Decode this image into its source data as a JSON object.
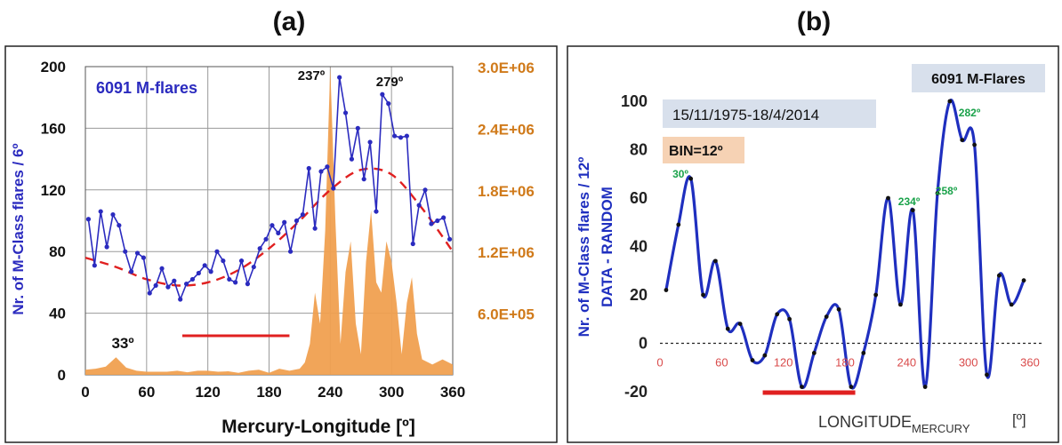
{
  "panel_a_label": "(a)",
  "panel_b_label": "(b)",
  "chart_data": [
    {
      "type": "line",
      "panel": "(a)",
      "annotation_count": "6091 M-flares",
      "annotations": [
        "237º",
        "279º",
        "33º"
      ],
      "xlabel": "Mercury-Longitude  [º]",
      "ylabel": "Nr.  of  M-Class  flares / 6º",
      "xlim": [
        0,
        360
      ],
      "ylim": [
        0,
        200
      ],
      "y2lim": [
        0,
        3000000
      ],
      "x_ticks": [
        "0",
        "60",
        "120",
        "180",
        "240",
        "300",
        "360"
      ],
      "y_ticks": [
        "0",
        "40",
        "80",
        "120",
        "160",
        "200"
      ],
      "y2_ticks": [
        "6.0E+05",
        "1.2E+06",
        "1.8E+06",
        "2.4E+06",
        "3.0E+06"
      ],
      "grid": true,
      "colors": {
        "series": "#2b2bbf",
        "fit": "#e02020",
        "area": "#f0a050",
        "y2axis": "#d07a1a",
        "bar": "#e02020"
      },
      "highlight_range": [
        95,
        200
      ],
      "series": [
        {
          "style": "line-markers",
          "x": [
            3,
            9,
            15,
            21,
            27,
            33,
            39,
            45,
            51,
            57,
            63,
            69,
            75,
            81,
            87,
            93,
            99,
            105,
            111,
            117,
            123,
            129,
            135,
            141,
            147,
            153,
            159,
            165,
            171,
            177,
            183,
            189,
            195,
            201,
            207,
            213,
            219,
            225,
            231,
            237,
            243,
            249,
            255,
            261,
            267,
            273,
            279,
            285,
            291,
            297,
            303,
            309,
            315,
            321,
            327,
            333,
            339,
            345,
            351,
            357
          ],
          "values": [
            101,
            71,
            106,
            83,
            104,
            97,
            80,
            67,
            79,
            76,
            53,
            58,
            69,
            57,
            61,
            49,
            59,
            62,
            66,
            71,
            67,
            80,
            74,
            62,
            60,
            74,
            59,
            70,
            82,
            88,
            97,
            92,
            99,
            80,
            100,
            104,
            134,
            95,
            132,
            135,
            121,
            193,
            170,
            140,
            160,
            127,
            151,
            106,
            182,
            176,
            155,
            154,
            155,
            85,
            110,
            120,
            98,
            100,
            102,
            88
          ]
        },
        {
          "style": "dashed-fit",
          "x": [
            0,
            30,
            60,
            90,
            120,
            150,
            180,
            210,
            240,
            270,
            300,
            330,
            360
          ],
          "values": [
            76,
            70,
            62,
            58,
            60,
            68,
            82,
            100,
            120,
            133,
            130,
            108,
            80
          ]
        },
        {
          "style": "area",
          "axis": "right",
          "x": [
            0,
            10,
            20,
            30,
            40,
            50,
            60,
            70,
            80,
            90,
            100,
            110,
            120,
            130,
            140,
            150,
            160,
            170,
            180,
            190,
            200,
            210,
            215,
            220,
            225,
            230,
            235,
            240,
            245,
            250,
            255,
            260,
            265,
            270,
            275,
            280,
            285,
            290,
            295,
            300,
            305,
            310,
            315,
            320,
            325,
            330,
            340,
            350,
            360
          ],
          "values": [
            50000,
            60000,
            80000,
            170000,
            70000,
            40000,
            30000,
            30000,
            30000,
            40000,
            25000,
            40000,
            40000,
            30000,
            35000,
            20000,
            40000,
            50000,
            20000,
            60000,
            40000,
            60000,
            120000,
            300000,
            800000,
            500000,
            1400000,
            3000000,
            1500000,
            300000,
            1000000,
            1300000,
            500000,
            200000,
            1100000,
            1600000,
            900000,
            800000,
            1300000,
            1100000,
            700000,
            200000,
            700000,
            950000,
            400000,
            150000,
            100000,
            150000,
            100000
          ]
        }
      ]
    },
    {
      "type": "line",
      "panel": "(b)",
      "annotation_count": "6091 M-Flares",
      "date_range": "15/11/1975-18/4/2014",
      "bin": "BIN=12º",
      "peak_labels": [
        "30º",
        "234º",
        "258º",
        "282º"
      ],
      "xlabel_main": "LONGITUDE",
      "xlabel_sub": "MERCURY",
      "xlabel_unit": "[º]",
      "ylabel_1": "Nr. of M-Class  flares / 12º",
      "ylabel_2": "DATA  - RANDOM",
      "xlim": [
        0,
        360
      ],
      "ylim": [
        -20,
        100
      ],
      "x_ticks": [
        "0",
        "60",
        "120",
        "180",
        "240",
        "300",
        "360"
      ],
      "y_ticks": [
        "-20",
        "0",
        "20",
        "40",
        "60",
        "80",
        "100"
      ],
      "grid": false,
      "colors": {
        "series": "#1f2fbf",
        "bar": "#e02020",
        "zero": "#222222"
      },
      "highlight_range": [
        100,
        190
      ],
      "series": [
        {
          "style": "smooth-line",
          "x": [
            6,
            18,
            30,
            42,
            54,
            66,
            78,
            90,
            102,
            114,
            126,
            138,
            150,
            162,
            174,
            186,
            198,
            210,
            222,
            234,
            246,
            258,
            270,
            282,
            294,
            306,
            318,
            330,
            342,
            354
          ],
          "values": [
            22,
            49,
            68,
            20,
            34,
            6,
            8,
            -7,
            -5,
            12,
            10,
            -18,
            -4,
            11,
            14,
            -18,
            -4,
            20,
            60,
            16,
            55,
            -18,
            62,
            100,
            84,
            82,
            -13,
            28,
            16,
            26
          ]
        }
      ]
    }
  ]
}
